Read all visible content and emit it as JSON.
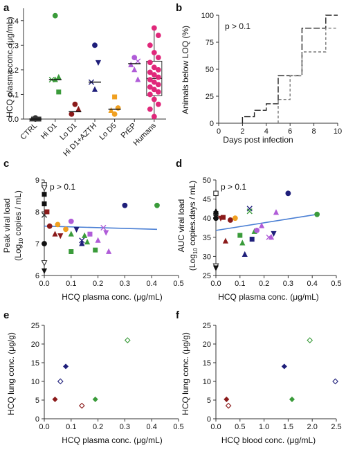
{
  "figure": {
    "panel_labels": [
      "a",
      "b",
      "c",
      "d",
      "e",
      "f"
    ]
  },
  "chart_data": [
    {
      "id": "a",
      "type": "scatter",
      "ylabel": "HCQ plasma conc. (μg/mL)",
      "ylim": [
        0,
        0.45
      ],
      "yticks": [
        "0.0",
        "0.1",
        "0.2",
        "0.3",
        "0.4"
      ],
      "yticks_values": [
        0,
        0.1,
        0.2,
        0.3,
        0.4
      ],
      "categories": [
        "CTRL",
        "Hi D1",
        "Lo D1",
        "Hi D1+AZTH",
        "Lo D5",
        "PrEP",
        "Humans"
      ],
      "colors": [
        "#333333",
        "#3a9b3a",
        "#8b1a1a",
        "#1e1e7a",
        "#f0a020",
        "#b05cd8",
        "#e0287a"
      ],
      "medians": [
        0.0,
        0.16,
        0.03,
        0.15,
        0.04,
        0.225,
        null
      ],
      "box": {
        "category": "Humans",
        "q1": 0.095,
        "median": 0.165,
        "q3": 0.235,
        "min": 0.01,
        "max": 0.37
      },
      "points": [
        {
          "cat": 0,
          "y": 0.0,
          "marker": "circle"
        },
        {
          "cat": 0,
          "y": 0.0,
          "marker": "square"
        },
        {
          "cat": 0,
          "y": 0.0,
          "marker": "triangle"
        },
        {
          "cat": 0,
          "y": 0.005,
          "marker": "circle"
        },
        {
          "cat": 1,
          "y": 0.42,
          "marker": "circle"
        },
        {
          "cat": 1,
          "y": 0.17,
          "marker": "triangle"
        },
        {
          "cat": 1,
          "y": 0.16,
          "marker": "x"
        },
        {
          "cat": 1,
          "y": 0.16,
          "marker": "triangle"
        },
        {
          "cat": 1,
          "y": 0.11,
          "marker": "square"
        },
        {
          "cat": 2,
          "y": 0.06,
          "marker": "circle"
        },
        {
          "cat": 2,
          "y": 0.04,
          "marker": "triangle"
        },
        {
          "cat": 2,
          "y": 0.02,
          "marker": "circle"
        },
        {
          "cat": 3,
          "y": 0.3,
          "marker": "circle"
        },
        {
          "cat": 3,
          "y": 0.23,
          "marker": "triangle-down"
        },
        {
          "cat": 3,
          "y": 0.15,
          "marker": "x"
        },
        {
          "cat": 3,
          "y": 0.12,
          "marker": "triangle"
        },
        {
          "cat": 4,
          "y": 0.09,
          "marker": "square"
        },
        {
          "cat": 4,
          "y": 0.045,
          "marker": "circle"
        },
        {
          "cat": 4,
          "y": 0.035,
          "marker": "triangle"
        },
        {
          "cat": 4,
          "y": 0.02,
          "marker": "circle"
        },
        {
          "cat": 5,
          "y": 0.25,
          "marker": "circle"
        },
        {
          "cat": 5,
          "y": 0.235,
          "marker": "x"
        },
        {
          "cat": 5,
          "y": 0.22,
          "marker": "triangle"
        },
        {
          "cat": 5,
          "y": 0.2,
          "marker": "triangle"
        },
        {
          "cat": 5,
          "y": 0.16,
          "marker": "triangle"
        },
        {
          "cat": 6,
          "y": 0.37,
          "marker": "circle"
        },
        {
          "cat": 6,
          "y": 0.34,
          "marker": "circle"
        },
        {
          "cat": 6,
          "y": 0.3,
          "marker": "circle"
        },
        {
          "cat": 6,
          "y": 0.27,
          "marker": "circle"
        },
        {
          "cat": 6,
          "y": 0.25,
          "marker": "circle"
        },
        {
          "cat": 6,
          "y": 0.23,
          "marker": "circle"
        },
        {
          "cat": 6,
          "y": 0.21,
          "marker": "circle"
        },
        {
          "cat": 6,
          "y": 0.2,
          "marker": "circle"
        },
        {
          "cat": 6,
          "y": 0.19,
          "marker": "circle"
        },
        {
          "cat": 6,
          "y": 0.18,
          "marker": "circle"
        },
        {
          "cat": 6,
          "y": 0.17,
          "marker": "circle"
        },
        {
          "cat": 6,
          "y": 0.16,
          "marker": "circle"
        },
        {
          "cat": 6,
          "y": 0.15,
          "marker": "circle"
        },
        {
          "cat": 6,
          "y": 0.14,
          "marker": "circle"
        },
        {
          "cat": 6,
          "y": 0.13,
          "marker": "circle"
        },
        {
          "cat": 6,
          "y": 0.12,
          "marker": "circle"
        },
        {
          "cat": 6,
          "y": 0.11,
          "marker": "circle"
        },
        {
          "cat": 6,
          "y": 0.1,
          "marker": "circle"
        },
        {
          "cat": 6,
          "y": 0.08,
          "marker": "circle"
        },
        {
          "cat": 6,
          "y": 0.06,
          "marker": "circle"
        },
        {
          "cat": 6,
          "y": 0.04,
          "marker": "circle"
        },
        {
          "cat": 6,
          "y": 0.01,
          "marker": "circle"
        }
      ]
    },
    {
      "id": "b",
      "type": "line",
      "annotation": "p > 0.1",
      "xlabel": "Days post infection",
      "ylabel": "Animals below LOQ (%)",
      "xlim": [
        0,
        10
      ],
      "ylim": [
        0,
        100
      ],
      "xticks": [
        0,
        2,
        4,
        6,
        8,
        10
      ],
      "yticks": [
        0,
        25,
        50,
        75,
        100
      ],
      "series": [
        {
          "style": "long-dash",
          "color": "#222222",
          "x": [
            2,
            2,
            3,
            3,
            4,
            4,
            5,
            5,
            6,
            6,
            7,
            7,
            9,
            9,
            10
          ],
          "y": [
            0,
            6,
            6,
            12,
            12,
            18,
            18,
            44,
            44,
            44,
            44,
            88,
            88,
            100,
            100
          ]
        },
        {
          "style": "short-dash",
          "color": "#777777",
          "x": [
            5,
            5,
            6,
            6,
            7,
            7,
            8,
            8,
            9,
            9,
            10
          ],
          "y": [
            0,
            22,
            22,
            44,
            44,
            66,
            66,
            66,
            66,
            88,
            88
          ]
        }
      ]
    },
    {
      "id": "c",
      "type": "scatter",
      "annotation": "p > 0.1",
      "xlabel": "HCQ plasma conc. (μg/mL)",
      "ylabel_line1": "Peak viral load",
      "ylabel_line2_pre": "(Log",
      "ylabel_line2_sub": "10",
      "ylabel_line2_post": " copies / mL)",
      "xlim": [
        0,
        0.5
      ],
      "ylim": [
        6,
        9
      ],
      "xticks": [
        "0.0",
        "0.1",
        "0.2",
        "0.3",
        "0.4",
        "0.5"
      ],
      "xticks_values": [
        0,
        0.1,
        0.2,
        0.3,
        0.4,
        0.5
      ],
      "yticks": [
        6,
        7,
        8,
        9
      ],
      "trend": {
        "x": [
          0,
          0.42
        ],
        "y": [
          7.55,
          7.45
        ],
        "color": "#4a7fd4"
      },
      "points": [
        {
          "x": 0.0,
          "y": 8.85,
          "marker": "square-open",
          "color": "#333333"
        },
        {
          "x": 0.0,
          "y": 8.75,
          "marker": "triangle-down-open",
          "color": "#333333"
        },
        {
          "x": 0.0,
          "y": 8.55,
          "marker": "square",
          "color": "#111111"
        },
        {
          "x": 0.0,
          "y": 8.25,
          "marker": "square",
          "color": "#111111"
        },
        {
          "x": 0.0,
          "y": 7.9,
          "marker": "x",
          "color": "#333333"
        },
        {
          "x": 0.0,
          "y": 7.0,
          "marker": "circle",
          "color": "#111111"
        },
        {
          "x": 0.0,
          "y": 6.4,
          "marker": "triangle-down-open",
          "color": "#333333"
        },
        {
          "x": 0.0,
          "y": 6.15,
          "marker": "triangle-down",
          "color": "#111111"
        },
        {
          "x": 0.01,
          "y": 8.0,
          "marker": "square",
          "color": "#8b1a1a"
        },
        {
          "x": 0.02,
          "y": 7.55,
          "marker": "circle",
          "color": "#8b1a1a"
        },
        {
          "x": 0.04,
          "y": 7.3,
          "marker": "triangle",
          "color": "#8b1a1a"
        },
        {
          "x": 0.05,
          "y": 7.6,
          "marker": "circle",
          "color": "#f0a020"
        },
        {
          "x": 0.06,
          "y": 7.25,
          "marker": "triangle-down",
          "color": "#8b1a1a"
        },
        {
          "x": 0.08,
          "y": 7.45,
          "marker": "circle",
          "color": "#f0a020"
        },
        {
          "x": 0.1,
          "y": 6.75,
          "marker": "square",
          "color": "#3a9b3a"
        },
        {
          "x": 0.1,
          "y": 7.3,
          "marker": "triangle",
          "color": "#3a9b3a"
        },
        {
          "x": 0.1,
          "y": 7.7,
          "marker": "circle",
          "color": "#b05cd8"
        },
        {
          "x": 0.12,
          "y": 7.45,
          "marker": "triangle-down",
          "color": "#1e1e7a"
        },
        {
          "x": 0.14,
          "y": 7.1,
          "marker": "x",
          "color": "#1e1e7a"
        },
        {
          "x": 0.14,
          "y": 7.0,
          "marker": "triangle",
          "color": "#1e1e7a"
        },
        {
          "x": 0.15,
          "y": 7.25,
          "marker": "triangle",
          "color": "#3a9b3a"
        },
        {
          "x": 0.16,
          "y": 7.05,
          "marker": "triangle",
          "color": "#3a9b3a"
        },
        {
          "x": 0.17,
          "y": 7.3,
          "marker": "square",
          "color": "#b05cd8"
        },
        {
          "x": 0.19,
          "y": 6.8,
          "marker": "square",
          "color": "#3a9b3a"
        },
        {
          "x": 0.2,
          "y": 7.1,
          "marker": "triangle",
          "color": "#b05cd8"
        },
        {
          "x": 0.22,
          "y": 7.5,
          "marker": "x",
          "color": "#b05cd8"
        },
        {
          "x": 0.23,
          "y": 7.35,
          "marker": "triangle-down",
          "color": "#b05cd8"
        },
        {
          "x": 0.24,
          "y": 6.75,
          "marker": "triangle",
          "color": "#b05cd8"
        },
        {
          "x": 0.3,
          "y": 8.2,
          "marker": "circle",
          "color": "#1e1e7a"
        },
        {
          "x": 0.42,
          "y": 8.2,
          "marker": "circle",
          "color": "#3a9b3a"
        }
      ]
    },
    {
      "id": "d",
      "type": "scatter",
      "annotation": "p > 0.1",
      "xlabel": "HCQ plasma conc. (μg/mL)",
      "ylabel_line1": "AUC viral load",
      "ylabel_line2_pre": "(Log",
      "ylabel_line2_sub": "10",
      "ylabel_line2_post": " copies.days / mL)",
      "xlim": [
        0,
        0.5
      ],
      "ylim": [
        25,
        50
      ],
      "xticks": [
        "0.0",
        "0.1",
        "0.2",
        "0.3",
        "0.4",
        "0.5"
      ],
      "xticks_values": [
        0,
        0.1,
        0.2,
        0.3,
        0.4,
        0.5
      ],
      "yticks": [
        25,
        30,
        35,
        40,
        45,
        50
      ],
      "trend": {
        "x": [
          0,
          0.42
        ],
        "y": [
          36.8,
          41.0
        ],
        "color": "#4a7fd4"
      },
      "points": [
        {
          "x": 0.0,
          "y": 46.5,
          "marker": "square-open",
          "color": "#333333"
        },
        {
          "x": 0.0,
          "y": 41.8,
          "marker": "triangle",
          "color": "#111111"
        },
        {
          "x": 0.0,
          "y": 41.2,
          "marker": "square",
          "color": "#111111"
        },
        {
          "x": 0.0,
          "y": 40.5,
          "marker": "x",
          "color": "#333333"
        },
        {
          "x": 0.0,
          "y": 40.0,
          "marker": "circle",
          "color": "#111111"
        },
        {
          "x": 0.0,
          "y": 27.5,
          "marker": "triangle-down-open",
          "color": "#333333"
        },
        {
          "x": 0.0,
          "y": 27.0,
          "marker": "triangle-down",
          "color": "#111111"
        },
        {
          "x": 0.02,
          "y": 40.0,
          "marker": "triangle-down",
          "color": "#8b1a1a"
        },
        {
          "x": 0.03,
          "y": 40.2,
          "marker": "square",
          "color": "#8b1a1a"
        },
        {
          "x": 0.04,
          "y": 34.0,
          "marker": "triangle",
          "color": "#8b1a1a"
        },
        {
          "x": 0.06,
          "y": 39.5,
          "marker": "circle",
          "color": "#8b1a1a"
        },
        {
          "x": 0.08,
          "y": 40.0,
          "marker": "circle",
          "color": "#f0a020"
        },
        {
          "x": 0.1,
          "y": 35.5,
          "marker": "square",
          "color": "#3a9b3a"
        },
        {
          "x": 0.11,
          "y": 33.5,
          "marker": "triangle",
          "color": "#3a9b3a"
        },
        {
          "x": 0.12,
          "y": 30.5,
          "marker": "triangle",
          "color": "#1e1e7a"
        },
        {
          "x": 0.14,
          "y": 42.5,
          "marker": "x",
          "color": "#1e1e7a"
        },
        {
          "x": 0.14,
          "y": 41.8,
          "marker": "x",
          "color": "#3a9b3a"
        },
        {
          "x": 0.15,
          "y": 34.5,
          "marker": "square",
          "color": "#1e1e7a"
        },
        {
          "x": 0.16,
          "y": 36.5,
          "marker": "triangle",
          "color": "#3a9b3a"
        },
        {
          "x": 0.17,
          "y": 36.8,
          "marker": "circle",
          "color": "#b05cd8"
        },
        {
          "x": 0.19,
          "y": 38.0,
          "marker": "triangle",
          "color": "#b05cd8"
        },
        {
          "x": 0.22,
          "y": 35.0,
          "marker": "x",
          "color": "#b05cd8"
        },
        {
          "x": 0.23,
          "y": 35.0,
          "marker": "triangle",
          "color": "#b05cd8"
        },
        {
          "x": 0.24,
          "y": 36.0,
          "marker": "triangle-down",
          "color": "#1e1e7a"
        },
        {
          "x": 0.25,
          "y": 41.5,
          "marker": "triangle",
          "color": "#b05cd8"
        },
        {
          "x": 0.3,
          "y": 46.5,
          "marker": "circle",
          "color": "#1e1e7a"
        },
        {
          "x": 0.42,
          "y": 41.0,
          "marker": "circle",
          "color": "#3a9b3a"
        }
      ]
    },
    {
      "id": "e",
      "type": "scatter",
      "xlabel": "HCQ plasma conc. (μg/mL)",
      "ylabel": "HCQ lung conc. (μg/g)",
      "xlim": [
        0,
        0.5
      ],
      "ylim": [
        0,
        25
      ],
      "xticks": [
        "0.0",
        "0.1",
        "0.2",
        "0.3",
        "0.4",
        "0.5"
      ],
      "xticks_values": [
        0,
        0.1,
        0.2,
        0.3,
        0.4,
        0.5
      ],
      "yticks": [
        0,
        5,
        10,
        15,
        20,
        25
      ],
      "points": [
        {
          "x": 0.04,
          "y": 5.2,
          "marker": "diamond",
          "color": "#8b1a1a"
        },
        {
          "x": 0.06,
          "y": 10.0,
          "marker": "diamond-open",
          "color": "#1e1e7a"
        },
        {
          "x": 0.08,
          "y": 14.0,
          "marker": "diamond",
          "color": "#1e1e7a"
        },
        {
          "x": 0.14,
          "y": 3.5,
          "marker": "diamond-open",
          "color": "#8b1a1a"
        },
        {
          "x": 0.19,
          "y": 5.2,
          "marker": "diamond",
          "color": "#3a9b3a"
        },
        {
          "x": 0.31,
          "y": 21.0,
          "marker": "diamond-open",
          "color": "#3a9b3a"
        }
      ]
    },
    {
      "id": "f",
      "type": "scatter",
      "xlabel": "HCQ blood conc. (μg/mL)",
      "ylabel": "HCQ lung conc. (μg/g)",
      "xlim": [
        0,
        2.5
      ],
      "ylim": [
        0,
        25
      ],
      "xticks": [
        "0.0",
        "0.5",
        "1.0",
        "1.5",
        "2.0",
        "2.5"
      ],
      "xticks_values": [
        0,
        0.5,
        1.0,
        1.5,
        2.0,
        2.5
      ],
      "yticks": [
        0,
        5,
        10,
        15,
        20,
        25
      ],
      "points": [
        {
          "x": 0.22,
          "y": 5.2,
          "marker": "diamond",
          "color": "#8b1a1a"
        },
        {
          "x": 0.26,
          "y": 3.5,
          "marker": "diamond-open",
          "color": "#8b1a1a"
        },
        {
          "x": 1.42,
          "y": 14.0,
          "marker": "diamond",
          "color": "#1e1e7a"
        },
        {
          "x": 1.58,
          "y": 5.2,
          "marker": "diamond",
          "color": "#3a9b3a"
        },
        {
          "x": 1.95,
          "y": 21.0,
          "marker": "diamond-open",
          "color": "#3a9b3a"
        },
        {
          "x": 2.48,
          "y": 10.0,
          "marker": "diamond-open",
          "color": "#1e1e7a"
        }
      ]
    }
  ]
}
